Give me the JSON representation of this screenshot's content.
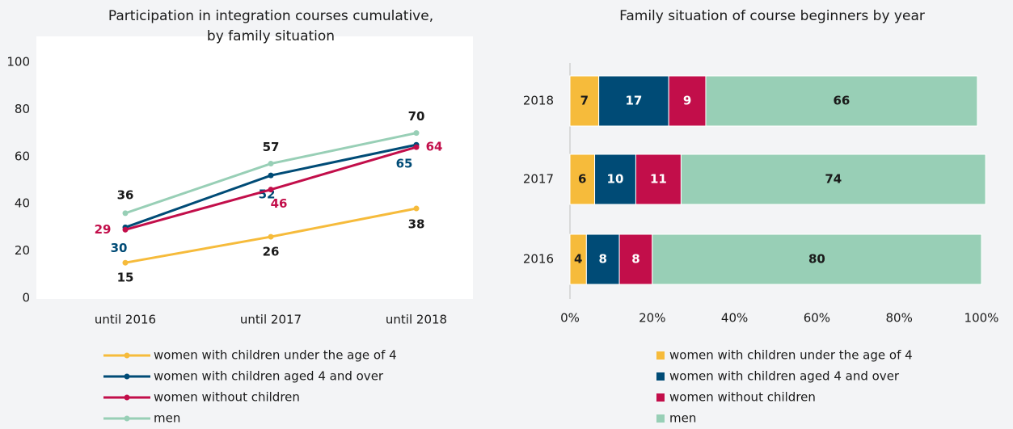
{
  "chart_data": [
    {
      "type": "line",
      "title": [
        "Participation in integration courses cumulative,",
        "by family situation"
      ],
      "categories": [
        "until 2016",
        "until 2017",
        "until 2018"
      ],
      "ylim": [
        0,
        100
      ],
      "yticks": [
        0,
        20,
        40,
        60,
        80,
        100
      ],
      "series": [
        {
          "name": "women with children under the age of 4",
          "color": "#f6bb3b",
          "label_color": "#1a1a1a",
          "values": [
            15,
            26,
            38
          ]
        },
        {
          "name": "women with children aged 4 and over",
          "color": "#004b76",
          "label_color": "#004b76",
          "values": [
            30,
            52,
            65
          ]
        },
        {
          "name": "women without children",
          "color": "#c20e4a",
          "label_color": "#c20e4a",
          "values": [
            29,
            46,
            64
          ]
        },
        {
          "name": "men",
          "color": "#98cfb6",
          "label_color": "#1a1a1a",
          "values": [
            36,
            57,
            70
          ]
        }
      ]
    },
    {
      "type": "stacked_barh",
      "title": "Family situation of course beginners by year",
      "categories": [
        "2018",
        "2017",
        "2016"
      ],
      "xlim": [
        0,
        100
      ],
      "xticks": [
        {
          "value": 0,
          "label": "0%"
        },
        {
          "value": 20,
          "label": "20%"
        },
        {
          "value": 40,
          "label": "40%"
        },
        {
          "value": 60,
          "label": "60%"
        },
        {
          "value": 80,
          "label": "80%"
        },
        {
          "value": 100,
          "label": "100%"
        }
      ],
      "series": [
        {
          "name": "women with children under the age of 4",
          "color": "#f6bb3b",
          "label_color": "#1a1a1a",
          "values": [
            7,
            6,
            4
          ]
        },
        {
          "name": "women with children aged 4 and over",
          "color": "#004b76",
          "label_color": "#ffffff",
          "values": [
            17,
            10,
            8
          ]
        },
        {
          "name": "women without children",
          "color": "#c20e4a",
          "label_color": "#ffffff",
          "values": [
            9,
            11,
            8
          ]
        },
        {
          "name": "men",
          "color": "#98cfb6",
          "label_color": "#1a1a1a",
          "values": [
            66,
            74,
            80
          ]
        }
      ]
    }
  ]
}
